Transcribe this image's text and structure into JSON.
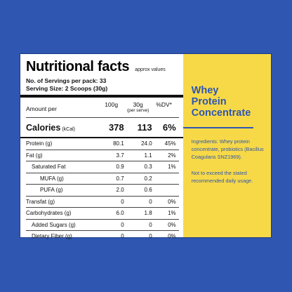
{
  "label": {
    "title": "Nutritional facts",
    "approx": "approx values",
    "servings_per_pack": "No. of Servings per pack: 33",
    "serving_size": "Serving Size: 2 Scoops (30g)",
    "columns": {
      "amount_per": "Amount per",
      "per_100g": "100g",
      "per_serve": "30g",
      "per_serve_note": "(per serve)",
      "dv": "%DV*"
    },
    "calories": {
      "label": "Calories",
      "unit": "(kCal)",
      "per_100g": "378",
      "per_serve": "113",
      "dv": "6%"
    },
    "rows": [
      {
        "label": "Protein (g)",
        "per_100g": "80.1",
        "per_serve": "24.0",
        "dv": "45%"
      },
      {
        "label": "Fat (g)",
        "per_100g": "3.7",
        "per_serve": "1.1",
        "dv": "2%"
      },
      {
        "label": "Saturated Fat",
        "per_100g": "0.9",
        "per_serve": "0.3",
        "dv": "1%"
      },
      {
        "label": "MUFA (g)",
        "per_100g": "0.7",
        "per_serve": "0.2",
        "dv": ""
      },
      {
        "label": "PUFA (g)",
        "per_100g": "2.0",
        "per_serve": "0.6",
        "dv": ""
      },
      {
        "label": "Transfat (g)",
        "per_100g": "0",
        "per_serve": "0",
        "dv": "0%"
      },
      {
        "label": "Carbohydrates (g)",
        "per_100g": "6.0",
        "per_serve": "1.8",
        "dv": "1%"
      },
      {
        "label": "Added Sugars (g)",
        "per_100g": "0",
        "per_serve": "0",
        "dv": "0%"
      },
      {
        "label": "Dietary Fiber (g)",
        "per_100g": "0",
        "per_serve": "0",
        "dv": "0%"
      }
    ]
  },
  "side": {
    "title": "Whey\nProtein\nConcentrate",
    "ingredients": "Ingredients: Whey protein concentrate, probiotics (Bacillus Coagulans SNZ1969).",
    "note": "Not to exceed the stated recommended daily usage."
  },
  "colors": {
    "background": "#2f56b0",
    "side_panel": "#f7d948",
    "accent_text": "#2f56b0"
  }
}
